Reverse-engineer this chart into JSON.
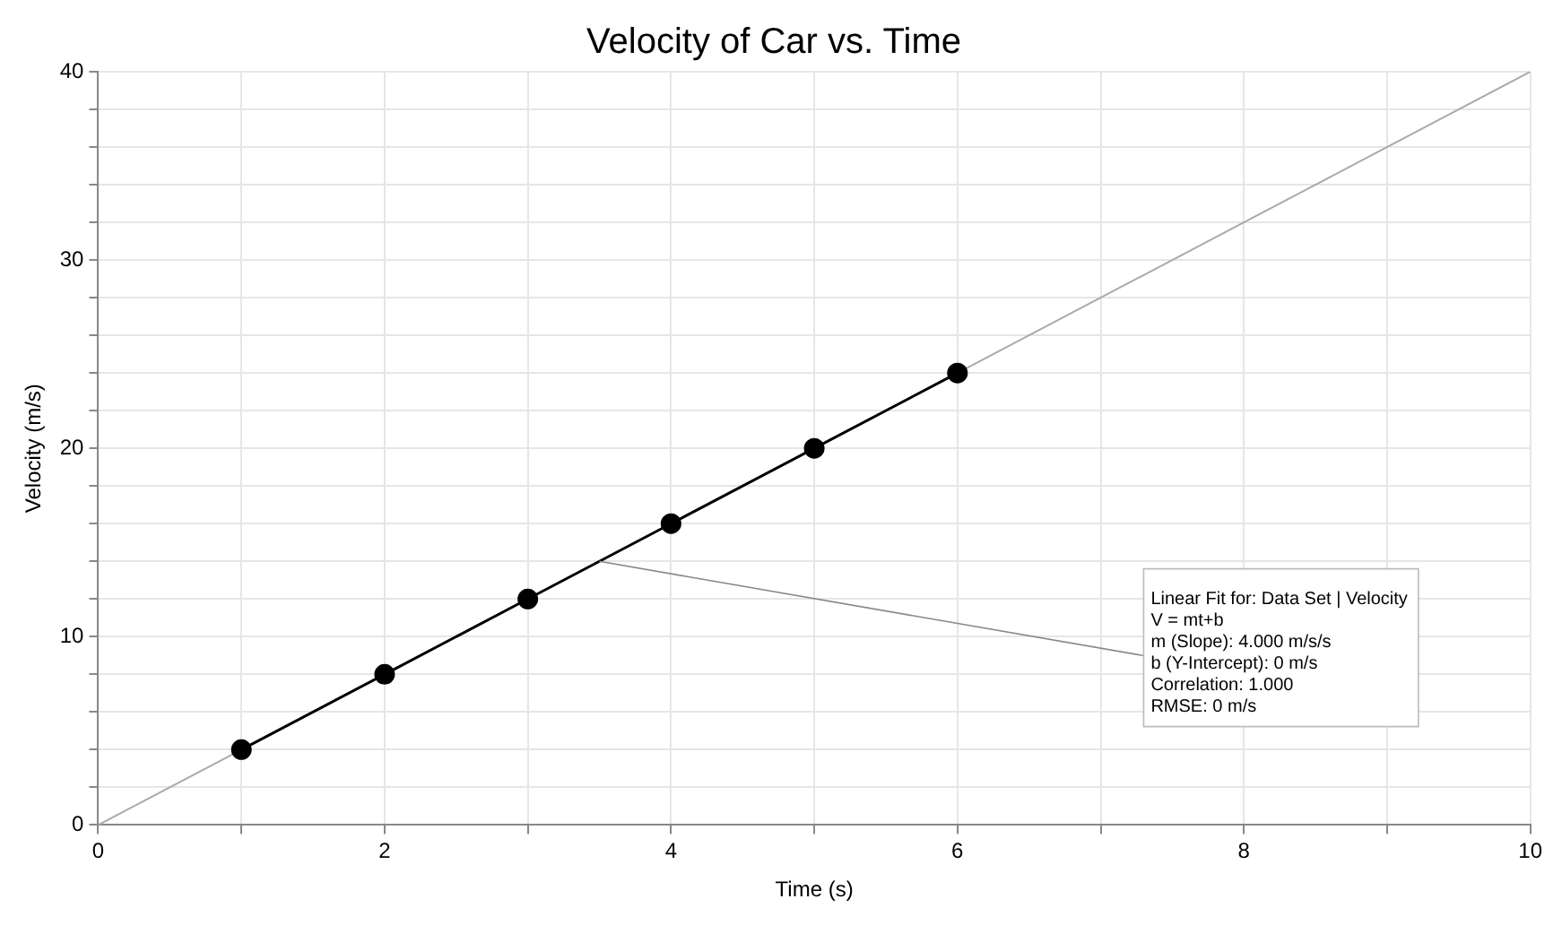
{
  "chart_data": {
    "type": "line",
    "title": "Velocity of Car vs. Time",
    "xlabel": "Time (s)",
    "ylabel": "Velocity (m/s)",
    "series": [
      {
        "x": [
          1,
          2,
          3,
          4,
          5,
          6
        ],
        "values": [
          4,
          8,
          12,
          16,
          20,
          24
        ],
        "color": "#000000",
        "marker": "circle"
      },
      {
        "x": [
          0,
          10
        ],
        "values": [
          0,
          40
        ],
        "color": "#aaaaaa",
        "marker": "none"
      }
    ],
    "xlim": [
      0,
      10
    ],
    "xticks": [
      0,
      {
        "value": 1,
        "label": null
      },
      2,
      {
        "value": 3,
        "label": null
      },
      4,
      {
        "value": 5,
        "label": null
      },
      6,
      {
        "value": 7,
        "label": null
      },
      8,
      {
        "value": 9,
        "label": null
      },
      10
    ],
    "ylim": [
      0,
      40
    ],
    "yticks": [
      0,
      {
        "value": 2,
        "label": null
      },
      {
        "value": 4,
        "label": null
      },
      {
        "value": 6,
        "label": null
      },
      {
        "value": 8,
        "label": null
      },
      10,
      {
        "value": 12,
        "label": null
      },
      {
        "value": 14,
        "label": null
      },
      {
        "value": 16,
        "label": null
      },
      {
        "value": 18,
        "label": null
      },
      20,
      {
        "value": 22,
        "label": null
      },
      {
        "value": 24,
        "label": null
      },
      {
        "value": 26,
        "label": null
      },
      {
        "value": 28,
        "label": null
      },
      30,
      {
        "value": 32,
        "label": null
      },
      {
        "value": 34,
        "label": null
      },
      {
        "value": 36,
        "label": null
      },
      {
        "value": 38,
        "label": null
      },
      40
    ],
    "grid": true,
    "legend": false,
    "line_style": "solid",
    "annotations": [
      {
        "text": "Linear Fit for: Data Set | Velocity\nV = mt+b\nm (Slope): 4.000 m/s/s\nb (Y-Intercept): 0 m/s\nCorrelation: 1.000\nRMSE: 0 m/s",
        "x": 3.5,
        "y": 14
      }
    ]
  }
}
